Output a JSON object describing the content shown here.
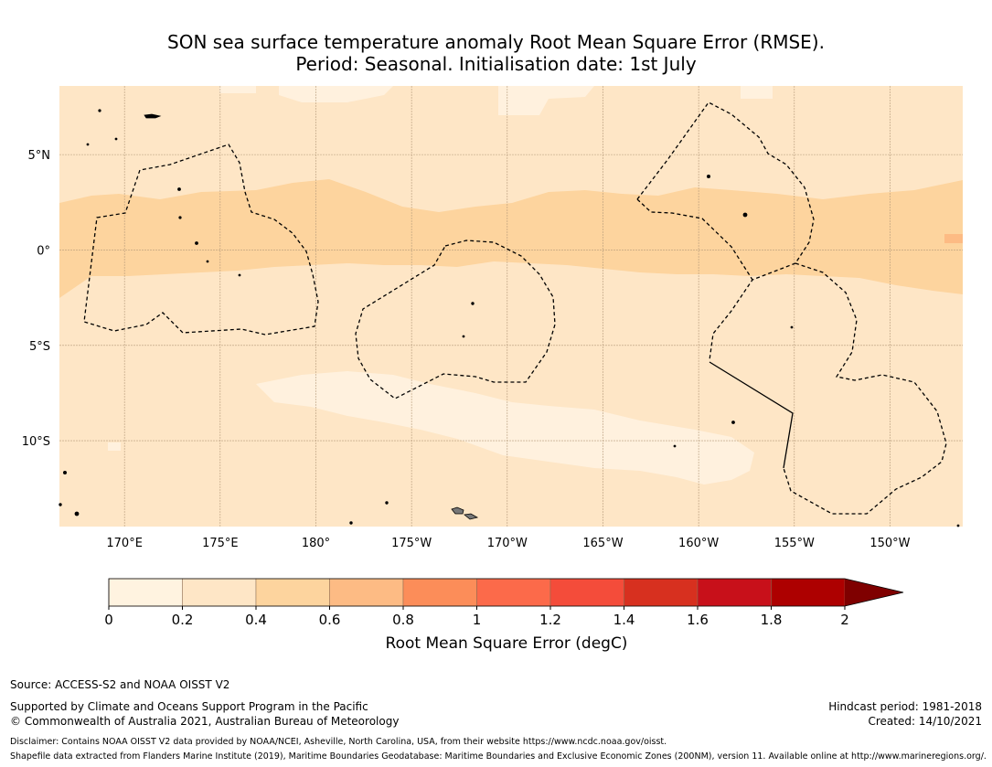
{
  "title": {
    "line1": "SON sea surface temperature anomaly Root Mean Square Error (RMSE).",
    "line2": "Period: Seasonal. Initialisation date: 1st July"
  },
  "map": {
    "lon_ticks": [
      "170°E",
      "175°E",
      "180°",
      "175°W",
      "170°W",
      "165°W",
      "160°W",
      "155°W",
      "150°W"
    ],
    "lat_ticks": [
      "5°N",
      "0°",
      "5°S",
      "10°S"
    ],
    "lon_tick_values": [
      170,
      175,
      180,
      185,
      190,
      195,
      200,
      205,
      210
    ],
    "lat_tick_values": [
      5,
      0,
      -5,
      -10
    ],
    "lon_range": [
      166.6,
      213.8
    ],
    "lat_range": [
      -14.5,
      8.6
    ],
    "gridlines": true,
    "colors": {
      "rmse_0_0.2": "#fff1de",
      "rmse_0.2_0.4": "#fee6c6",
      "rmse_0.4_0.6": "#fdd49e",
      "rmse_0.6_0.8": "#fdbb84"
    }
  },
  "colorbar": {
    "label": "Root Mean Square Error (degC)",
    "tick_labels": [
      "0",
      "0.2",
      "0.4",
      "0.6",
      "0.8",
      "1",
      "1.2",
      "1.4",
      "1.6",
      "1.8",
      "2"
    ],
    "colors": [
      "#fff3e0",
      "#fee6c6",
      "#fdd49e",
      "#fdbb84",
      "#fc8d59",
      "#fc6a4a",
      "#f44c3a",
      "#d7301f",
      "#c8101a",
      "#ad0000"
    ],
    "extend_color": "#7f0000",
    "extend": "max"
  },
  "footer": {
    "source": "Source: ACCESS-S2 and NOAA OISST V2",
    "support": "Supported by Climate and Oceans Support Program in the Pacific",
    "copyright": "© Commonwealth of Australia 2021, Australian Bureau of Meteorology",
    "hindcast": "Hindcast period: 1981-2018",
    "created": "Created: 14/10/2021",
    "disclaimer": "Disclaimer: Contains NOAA OISST V2 data provided by NOAA/NCEI, Asheville, North Carolina, USA, from their website https://www.ncdc.noaa.gov/oisst.",
    "shapefile": "Shapefile data extracted from Flanders Marine Institute (2019), Maritime Boundaries Geodatabase: Maritime Boundaries and Exclusive Economic Zones (200NM), version 11. Available online at http://www.marineregions.org/."
  }
}
